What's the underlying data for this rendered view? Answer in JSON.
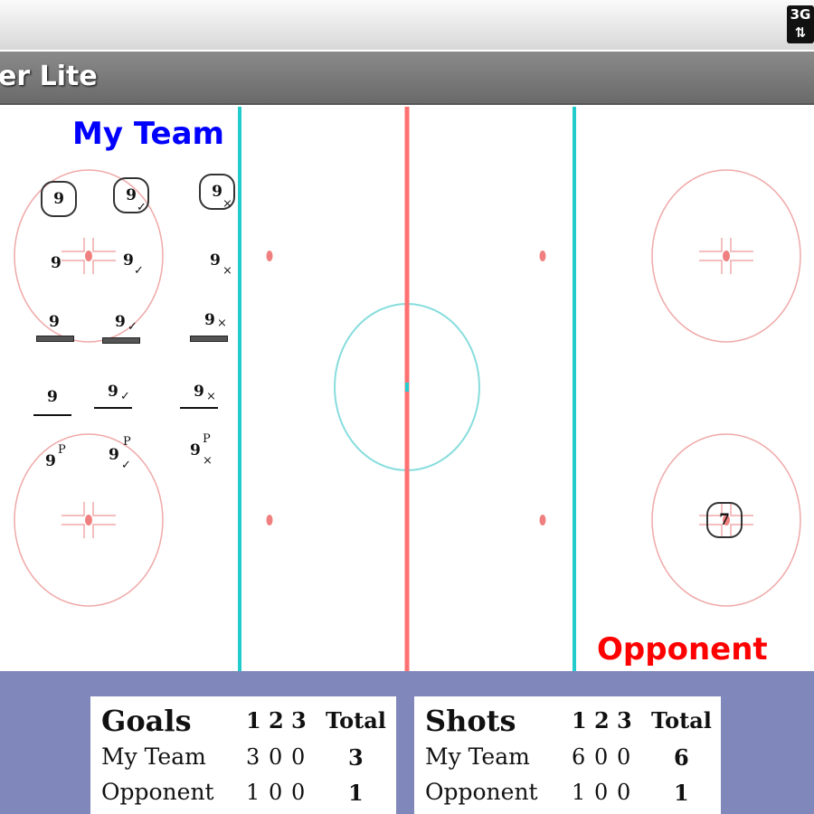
{
  "status_bar": {
    "network": "3G",
    "network_icon": "3g-upload-icon"
  },
  "app": {
    "title": "er Lite"
  },
  "rink": {
    "my_team_label": "My Team",
    "my_team_color": "#0000ff",
    "opponent_label": "Opponent",
    "opponent_color": "#ff0000",
    "legend_number": "9",
    "period_marker": "P",
    "check": "✓",
    "cross": "×",
    "opponent_marker": "7",
    "colors": {
      "blue_line": "#22cccc",
      "red_line": "#ff7070",
      "faceoff": "#f0a0a0"
    }
  },
  "goals": {
    "title": "Goals",
    "periods": [
      "1",
      "2",
      "3"
    ],
    "total_label": "Total",
    "rows": [
      {
        "team": "My Team",
        "p": [
          "3",
          "0",
          "0"
        ],
        "total": "3"
      },
      {
        "team": "Opponent",
        "p": [
          "1",
          "0",
          "0"
        ],
        "total": "1"
      }
    ]
  },
  "shots": {
    "title": "Shots",
    "periods": [
      "1",
      "2",
      "3"
    ],
    "total_label": "Total",
    "rows": [
      {
        "team": "My Team",
        "p": [
          "6",
          "0",
          "0"
        ],
        "total": "6"
      },
      {
        "team": "Opponent",
        "p": [
          "1",
          "0",
          "0"
        ],
        "total": "1"
      }
    ]
  }
}
